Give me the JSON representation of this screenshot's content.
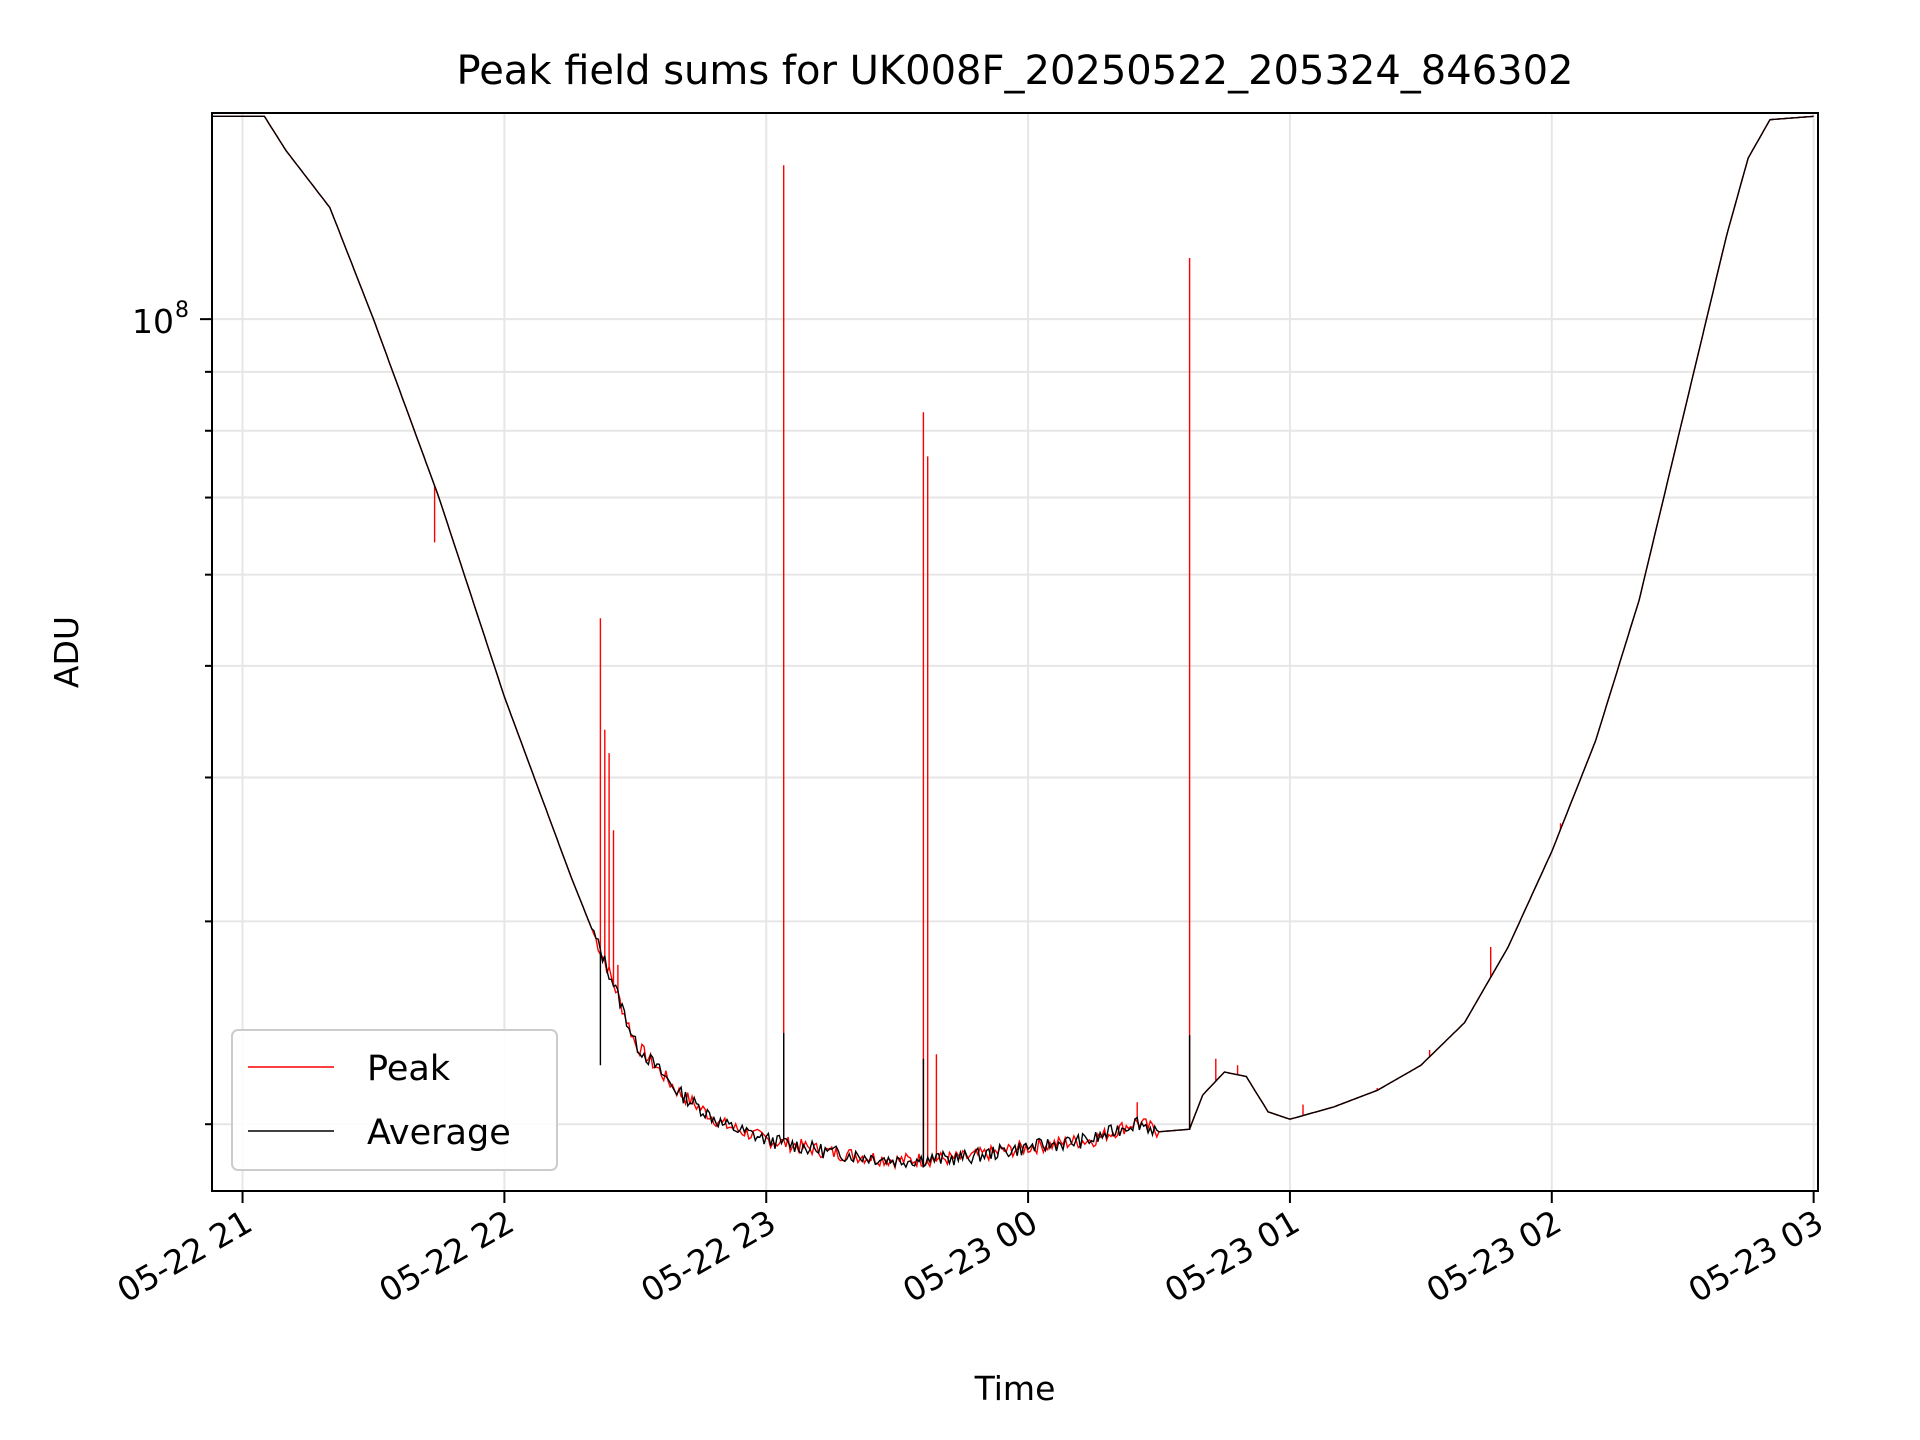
{
  "chart_data": {
    "type": "line",
    "title": "Peak field sums for UK008F_20250522_205324_846302",
    "xlabel": "Time",
    "ylabel": "ADU",
    "y_scale": "log",
    "ylim": [
      17500000,
      151000000
    ],
    "xlim": [
      "2025-05-22 20:53",
      "2025-05-23 03:01"
    ],
    "grid": true,
    "legend_position": "lower-left",
    "x_ticks": [
      {
        "label": "05-22 21",
        "t": "2025-05-22 21:00"
      },
      {
        "label": "05-22 22",
        "t": "2025-05-22 22:00"
      },
      {
        "label": "05-22 23",
        "t": "2025-05-22 23:00"
      },
      {
        "label": "05-23 00",
        "t": "2025-05-23 00:00"
      },
      {
        "label": "05-23 01",
        "t": "2025-05-23 01:00"
      },
      {
        "label": "05-23 02",
        "t": "2025-05-23 02:00"
      },
      {
        "label": "05-23 03",
        "t": "2025-05-23 03:00"
      }
    ],
    "y_major_tick_label": {
      "base": "10",
      "exponent": "8",
      "value": 100000000
    },
    "y_minor_ticks": [
      20000000,
      30000000,
      40000000,
      50000000,
      60000000,
      70000000,
      80000000,
      90000000,
      200000000
    ],
    "series": [
      {
        "name": "Average",
        "color": "#000000",
        "baseline": [
          [
            "2025-05-22 20:53",
            150000000
          ],
          [
            "2025-05-22 21:05",
            150000000
          ],
          [
            "2025-05-22 21:10",
            140000000
          ],
          [
            "2025-05-22 21:20",
            125000000
          ],
          [
            "2025-05-22 21:30",
            100000000
          ],
          [
            "2025-05-22 21:45",
            70000000
          ],
          [
            "2025-05-22 22:00",
            47000000
          ],
          [
            "2025-05-22 22:15",
            33000000
          ],
          [
            "2025-05-22 22:25",
            26500000
          ],
          [
            "2025-05-22 22:30",
            23500000
          ],
          [
            "2025-05-22 22:40",
            21300000
          ],
          [
            "2025-05-22 22:50",
            20000000
          ],
          [
            "2025-05-22 23:00",
            19400000
          ],
          [
            "2025-05-22 23:15",
            18900000
          ],
          [
            "2025-05-22 23:30",
            18600000
          ],
          [
            "2025-05-22 23:45",
            18700000
          ],
          [
            "2025-05-23 00:00",
            19100000
          ],
          [
            "2025-05-23 00:15",
            19400000
          ],
          [
            "2025-05-23 00:25",
            20100000
          ],
          [
            "2025-05-23 00:30",
            19700000
          ],
          [
            "2025-05-23 00:37",
            19800000
          ],
          [
            "2025-05-23 00:40",
            21200000
          ],
          [
            "2025-05-23 00:45",
            22200000
          ],
          [
            "2025-05-23 00:50",
            22000000
          ],
          [
            "2025-05-23 00:55",
            20500000
          ],
          [
            "2025-05-23 01:00",
            20200000
          ],
          [
            "2025-05-23 01:10",
            20700000
          ],
          [
            "2025-05-23 01:20",
            21400000
          ],
          [
            "2025-05-23 01:30",
            22500000
          ],
          [
            "2025-05-23 01:40",
            24500000
          ],
          [
            "2025-05-23 01:50",
            28500000
          ],
          [
            "2025-05-23 02:00",
            34500000
          ],
          [
            "2025-05-23 02:10",
            43000000
          ],
          [
            "2025-05-23 02:20",
            57000000
          ],
          [
            "2025-05-23 02:30",
            82000000
          ],
          [
            "2025-05-23 02:40",
            118000000
          ],
          [
            "2025-05-23 02:45",
            138000000
          ],
          [
            "2025-05-23 02:50",
            149000000
          ],
          [
            "2025-05-23 03:00",
            150000000
          ]
        ],
        "spikes": [
          [
            "2025-05-22 22:22",
            22500000
          ],
          [
            "2025-05-22 23:04",
            24000000
          ],
          [
            "2025-05-22 23:36",
            22800000
          ],
          [
            "2025-05-23 00:37",
            23900000
          ]
        ]
      },
      {
        "name": "Peak",
        "color": "#ff0000",
        "spikes": [
          [
            "2025-05-22 21:44",
            64000000
          ],
          [
            "2025-05-22 22:22",
            55000000
          ],
          [
            "2025-05-22 22:23",
            44000000
          ],
          [
            "2025-05-22 22:24",
            42000000
          ],
          [
            "2025-05-22 22:25",
            36000000
          ],
          [
            "2025-05-22 22:26",
            27500000
          ],
          [
            "2025-05-22 23:04",
            136000000
          ],
          [
            "2025-05-22 23:36",
            83000000
          ],
          [
            "2025-05-22 23:37",
            76000000
          ],
          [
            "2025-05-22 23:39",
            23000000
          ],
          [
            "2025-05-23 00:25",
            20900000
          ],
          [
            "2025-05-23 00:37",
            113000000
          ],
          [
            "2025-05-23 00:43",
            22800000
          ],
          [
            "2025-05-23 00:48",
            22500000
          ],
          [
            "2025-05-23 01:03",
            20800000
          ],
          [
            "2025-05-23 01:20",
            21500000
          ],
          [
            "2025-05-23 01:32",
            23200000
          ],
          [
            "2025-05-23 01:46",
            28500000
          ],
          [
            "2025-05-23 02:02",
            36500000
          ]
        ]
      }
    ]
  }
}
